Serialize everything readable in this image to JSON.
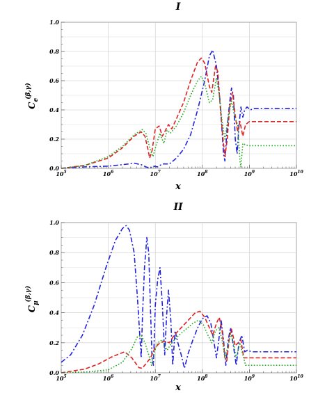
{
  "chart_data": [
    {
      "type": "line",
      "title": "I",
      "xlabel": "x",
      "ylabel_main": "C",
      "ylabel_sub": "e",
      "ylabel_sup": "(β,γ)",
      "x_scale": "log",
      "xlim": [
        100000,
        10000000000
      ],
      "ylim": [
        0,
        1.0
      ],
      "x_ticks": [
        {
          "base": "10",
          "exp": "5"
        },
        {
          "base": "10",
          "exp": "6"
        },
        {
          "base": "10",
          "exp": "7"
        },
        {
          "base": "10",
          "exp": "8"
        },
        {
          "base": "10",
          "exp": "9"
        },
        {
          "base": "10",
          "exp": "10"
        }
      ],
      "y_ticks": [
        "0.0",
        "0.2",
        "0.4",
        "0.6",
        "0.8",
        "1.0"
      ],
      "grid": true,
      "series": [
        {
          "color": "#2222dd",
          "dash": "dashdot",
          "points": [
            [
              5,
              0
            ],
            [
              5.5,
              0.01
            ],
            [
              6,
              0.015
            ],
            [
              6.3,
              0.025
            ],
            [
              6.55,
              0.035
            ],
            [
              6.7,
              0.025
            ],
            [
              6.8,
              0.01
            ],
            [
              6.88,
              0.0
            ],
            [
              6.95,
              0.015
            ],
            [
              7.05,
              0.01
            ],
            [
              7.15,
              0.03
            ],
            [
              7.3,
              0.03
            ],
            [
              7.45,
              0.07
            ],
            [
              7.6,
              0.13
            ],
            [
              7.75,
              0.23
            ],
            [
              7.9,
              0.4
            ],
            [
              8.05,
              0.6
            ],
            [
              8.15,
              0.77
            ],
            [
              8.22,
              0.81
            ],
            [
              8.3,
              0.7
            ],
            [
              8.38,
              0.45
            ],
            [
              8.45,
              0.1
            ],
            [
              8.48,
              0.05
            ],
            [
              8.52,
              0.25
            ],
            [
              8.58,
              0.45
            ],
            [
              8.62,
              0.55
            ],
            [
              8.66,
              0.5
            ],
            [
              8.7,
              0.2
            ],
            [
              8.74,
              0.1
            ],
            [
              8.78,
              0.3
            ],
            [
              8.82,
              0.42
            ],
            [
              8.86,
              0.35
            ],
            [
              8.9,
              0.4
            ],
            [
              8.95,
              0.42
            ],
            [
              9.02,
              0.4
            ],
            [
              9.1,
              0.41
            ],
            [
              9.2,
              0.41
            ],
            [
              10,
              0.41
            ]
          ]
        },
        {
          "color": "#dd2222",
          "dash": "dashed",
          "points": [
            [
              5,
              0
            ],
            [
              5.5,
              0.02
            ],
            [
              6,
              0.07
            ],
            [
              6.3,
              0.14
            ],
            [
              6.55,
              0.22
            ],
            [
              6.7,
              0.25
            ],
            [
              6.78,
              0.22
            ],
            [
              6.85,
              0.12
            ],
            [
              6.88,
              0.07
            ],
            [
              6.93,
              0.12
            ],
            [
              7.0,
              0.27
            ],
            [
              7.08,
              0.29
            ],
            [
              7.15,
              0.22
            ],
            [
              7.2,
              0.25
            ],
            [
              7.28,
              0.3
            ],
            [
              7.35,
              0.27
            ],
            [
              7.45,
              0.34
            ],
            [
              7.6,
              0.45
            ],
            [
              7.75,
              0.6
            ],
            [
              7.9,
              0.73
            ],
            [
              7.98,
              0.755
            ],
            [
              8.05,
              0.72
            ],
            [
              8.15,
              0.56
            ],
            [
              8.2,
              0.52
            ],
            [
              8.28,
              0.7
            ],
            [
              8.33,
              0.66
            ],
            [
              8.38,
              0.42
            ],
            [
              8.44,
              0.2
            ],
            [
              8.48,
              0.08
            ],
            [
              8.53,
              0.2
            ],
            [
              8.58,
              0.42
            ],
            [
              8.64,
              0.52
            ],
            [
              8.7,
              0.36
            ],
            [
              8.75,
              0.25
            ],
            [
              8.8,
              0.32
            ],
            [
              8.86,
              0.22
            ],
            [
              8.92,
              0.3
            ],
            [
              9.0,
              0.32
            ],
            [
              9.1,
              0.32
            ],
            [
              10,
              0.32
            ]
          ]
        },
        {
          "color": "#22aa22",
          "dash": "dotted",
          "points": [
            [
              5,
              0
            ],
            [
              5.5,
              0.02
            ],
            [
              6,
              0.08
            ],
            [
              6.3,
              0.15
            ],
            [
              6.55,
              0.23
            ],
            [
              6.72,
              0.265
            ],
            [
              6.8,
              0.24
            ],
            [
              6.9,
              0.12
            ],
            [
              6.95,
              0.08
            ],
            [
              7.02,
              0.16
            ],
            [
              7.1,
              0.24
            ],
            [
              7.18,
              0.17
            ],
            [
              7.25,
              0.26
            ],
            [
              7.32,
              0.24
            ],
            [
              7.45,
              0.29
            ],
            [
              7.6,
              0.38
            ],
            [
              7.75,
              0.5
            ],
            [
              7.9,
              0.6
            ],
            [
              7.98,
              0.63
            ],
            [
              8.05,
              0.58
            ],
            [
              8.15,
              0.45
            ],
            [
              8.22,
              0.47
            ],
            [
              8.3,
              0.62
            ],
            [
              8.36,
              0.5
            ],
            [
              8.42,
              0.32
            ],
            [
              8.48,
              0.2
            ],
            [
              8.55,
              0.35
            ],
            [
              8.62,
              0.46
            ],
            [
              8.7,
              0.34
            ],
            [
              8.75,
              0.3
            ],
            [
              8.8,
              0.05
            ],
            [
              8.82,
              0.01
            ],
            [
              8.86,
              0.17
            ],
            [
              8.92,
              0.16
            ],
            [
              9.0,
              0.155
            ],
            [
              10,
              0.155
            ]
          ]
        }
      ]
    },
    {
      "type": "line",
      "title": "II",
      "xlabel": "x",
      "ylabel_main": "C",
      "ylabel_sub": "μ",
      "ylabel_sup": "(β,γ)",
      "x_scale": "log",
      "xlim": [
        100000,
        10000000000
      ],
      "ylim": [
        0,
        1.0
      ],
      "x_ticks": [
        {
          "base": "10",
          "exp": "5"
        },
        {
          "base": "10",
          "exp": "6"
        },
        {
          "base": "10",
          "exp": "7"
        },
        {
          "base": "10",
          "exp": "8"
        },
        {
          "base": "10",
          "exp": "9"
        },
        {
          "base": "10",
          "exp": "10"
        }
      ],
      "y_ticks": [
        "0.0",
        "0.2",
        "0.4",
        "0.6",
        "0.8",
        "1.0"
      ],
      "grid": true,
      "series": [
        {
          "color": "#2222dd",
          "dash": "dashdot",
          "points": [
            [
              5,
              0.07
            ],
            [
              5.2,
              0.12
            ],
            [
              5.45,
              0.25
            ],
            [
              5.7,
              0.45
            ],
            [
              5.95,
              0.7
            ],
            [
              6.15,
              0.88
            ],
            [
              6.3,
              0.96
            ],
            [
              6.38,
              0.98
            ],
            [
              6.45,
              0.95
            ],
            [
              6.55,
              0.8
            ],
            [
              6.62,
              0.5
            ],
            [
              6.67,
              0.25
            ],
            [
              6.7,
              0.1
            ],
            [
              6.73,
              0.4
            ],
            [
              6.77,
              0.7
            ],
            [
              6.82,
              0.9
            ],
            [
              6.86,
              0.8
            ],
            [
              6.9,
              0.4
            ],
            [
              6.93,
              0.1
            ],
            [
              6.96,
              0.05
            ],
            [
              7.0,
              0.45
            ],
            [
              7.05,
              0.62
            ],
            [
              7.1,
              0.7
            ],
            [
              7.15,
              0.45
            ],
            [
              7.2,
              0.12
            ],
            [
              7.24,
              0.38
            ],
            [
              7.28,
              0.55
            ],
            [
              7.33,
              0.35
            ],
            [
              7.37,
              0.05
            ],
            [
              7.42,
              0.28
            ],
            [
              7.48,
              0.2
            ],
            [
              7.55,
              0.12
            ],
            [
              7.62,
              0.03
            ],
            [
              7.7,
              0.13
            ],
            [
              7.8,
              0.22
            ],
            [
              7.9,
              0.3
            ],
            [
              8.0,
              0.36
            ],
            [
              8.1,
              0.38
            ],
            [
              8.18,
              0.33
            ],
            [
              8.25,
              0.2
            ],
            [
              8.3,
              0.1
            ],
            [
              8.35,
              0.22
            ],
            [
              8.4,
              0.35
            ],
            [
              8.45,
              0.22
            ],
            [
              8.5,
              0.05
            ],
            [
              8.55,
              0.22
            ],
            [
              8.6,
              0.3
            ],
            [
              8.66,
              0.18
            ],
            [
              8.72,
              0.05
            ],
            [
              8.78,
              0.2
            ],
            [
              8.84,
              0.25
            ],
            [
              8.9,
              0.14
            ],
            [
              8.96,
              0.15
            ],
            [
              9.05,
              0.14
            ],
            [
              10,
              0.14
            ]
          ]
        },
        {
          "color": "#dd2222",
          "dash": "dashed",
          "points": [
            [
              5,
              0.0
            ],
            [
              5.5,
              0.025
            ],
            [
              5.8,
              0.06
            ],
            [
              6.1,
              0.11
            ],
            [
              6.35,
              0.14
            ],
            [
              6.5,
              0.1
            ],
            [
              6.65,
              0.035
            ],
            [
              6.72,
              0.03
            ],
            [
              6.8,
              0.06
            ],
            [
              6.9,
              0.1
            ],
            [
              7.0,
              0.17
            ],
            [
              7.1,
              0.2
            ],
            [
              7.2,
              0.21
            ],
            [
              7.3,
              0.2
            ],
            [
              7.4,
              0.25
            ],
            [
              7.55,
              0.3
            ],
            [
              7.7,
              0.35
            ],
            [
              7.85,
              0.4
            ],
            [
              7.95,
              0.41
            ],
            [
              8.05,
              0.37
            ],
            [
              8.15,
              0.3
            ],
            [
              8.22,
              0.25
            ],
            [
              8.3,
              0.33
            ],
            [
              8.36,
              0.37
            ],
            [
              8.42,
              0.28
            ],
            [
              8.48,
              0.1
            ],
            [
              8.52,
              0.08
            ],
            [
              8.58,
              0.25
            ],
            [
              8.62,
              0.29
            ],
            [
              8.7,
              0.18
            ],
            [
              8.76,
              0.2
            ],
            [
              8.82,
              0.22
            ],
            [
              8.88,
              0.1
            ],
            [
              8.95,
              0.1
            ],
            [
              10,
              0.1
            ]
          ]
        },
        {
          "color": "#22aa22",
          "dash": "dotted",
          "points": [
            [
              5,
              0.0
            ],
            [
              5.5,
              0.005
            ],
            [
              6.0,
              0.02
            ],
            [
              6.3,
              0.07
            ],
            [
              6.5,
              0.16
            ],
            [
              6.62,
              0.24
            ],
            [
              6.7,
              0.25
            ],
            [
              6.78,
              0.2
            ],
            [
              6.86,
              0.12
            ],
            [
              6.92,
              0.05
            ],
            [
              6.97,
              0.13
            ],
            [
              7.05,
              0.2
            ],
            [
              7.15,
              0.22
            ],
            [
              7.25,
              0.15
            ],
            [
              7.35,
              0.2
            ],
            [
              7.5,
              0.25
            ],
            [
              7.65,
              0.29
            ],
            [
              7.8,
              0.33
            ],
            [
              7.92,
              0.35
            ],
            [
              8.02,
              0.32
            ],
            [
              8.12,
              0.25
            ],
            [
              8.2,
              0.2
            ],
            [
              8.28,
              0.28
            ],
            [
              8.35,
              0.3
            ],
            [
              8.42,
              0.22
            ],
            [
              8.48,
              0.1
            ],
            [
              8.54,
              0.17
            ],
            [
              8.6,
              0.26
            ],
            [
              8.66,
              0.2
            ],
            [
              8.72,
              0.1
            ],
            [
              8.8,
              0.2
            ],
            [
              8.86,
              0.12
            ],
            [
              8.92,
              0.05
            ],
            [
              9.0,
              0.05
            ],
            [
              10,
              0.05
            ]
          ]
        }
      ]
    }
  ]
}
